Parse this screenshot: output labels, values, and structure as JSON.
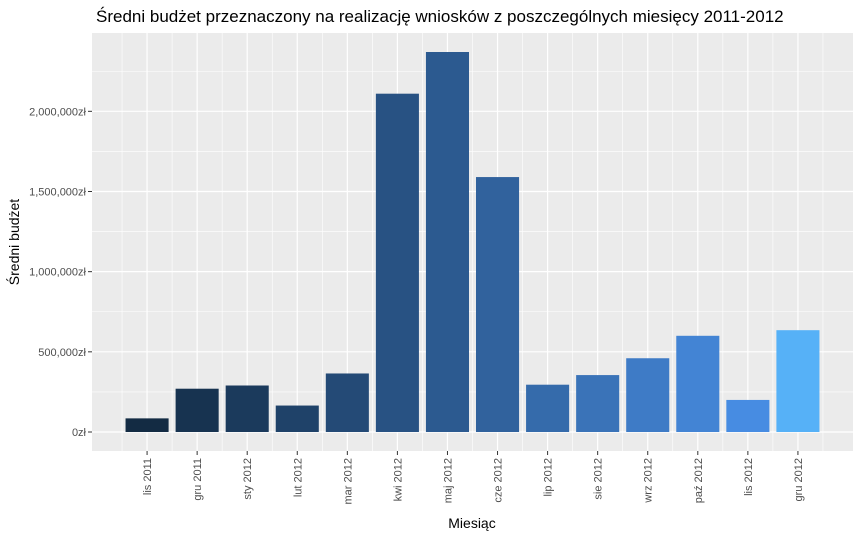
{
  "chart_data": {
    "type": "bar",
    "title": "Średni budżet przeznaczony na realizację wniosków z poszczególnych miesięcy 2011-2012",
    "xlabel": "Miesiąc",
    "ylabel": "Średni budżet",
    "categories": [
      "lis 2011",
      "gru 2011",
      "sty 2012",
      "lut 2012",
      "mar 2012",
      "kwi 2012",
      "maj 2012",
      "cze 2012",
      "lip 2012",
      "sie 2012",
      "wrz 2012",
      "paź 2012",
      "lis 2012",
      "gru 2012"
    ],
    "values": [
      85000,
      270000,
      290000,
      165000,
      365000,
      2110000,
      2370000,
      1590000,
      295000,
      355000,
      460000,
      600000,
      200000,
      635000
    ],
    "colors": [
      "#132B43",
      "#173350",
      "#1B3A5C",
      "#1F4269",
      "#244A76",
      "#285283",
      "#2C5A90",
      "#31629D",
      "#356BAB",
      "#3A73B8",
      "#3E7BC6",
      "#4384D4",
      "#478CE2",
      "#56B1F7"
    ],
    "y_ticks": [
      0,
      500000,
      1000000,
      1500000,
      2000000
    ],
    "y_tick_labels": [
      "0zł",
      "500,000zł",
      "1,000,000zł",
      "1,500,000zł",
      "2,000,000zł"
    ],
    "ylim": [
      -118500,
      2488500
    ],
    "grid": true,
    "legend": "none",
    "panel_background": "#EBEBEB",
    "gridline_color": "#FFFFFF"
  }
}
